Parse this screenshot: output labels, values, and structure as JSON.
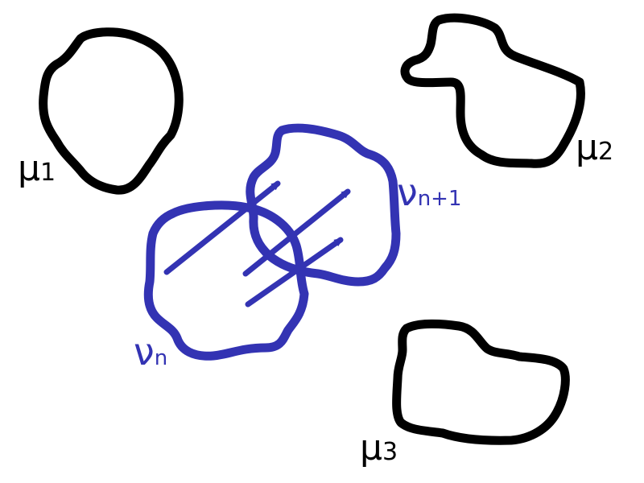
{
  "labels": {
    "mu1": {
      "symbol": "μ",
      "sub": "1"
    },
    "mu2": {
      "symbol": "μ",
      "sub": "2"
    },
    "mu3": {
      "symbol": "μ",
      "sub": "3"
    },
    "nu_n": {
      "symbol": "ν",
      "sub": "n"
    },
    "nu_n1": {
      "symbol": "ν",
      "sub": "n+1"
    }
  },
  "colors": {
    "target_measures": "#000000",
    "iterate_measures": "#3333b3"
  }
}
